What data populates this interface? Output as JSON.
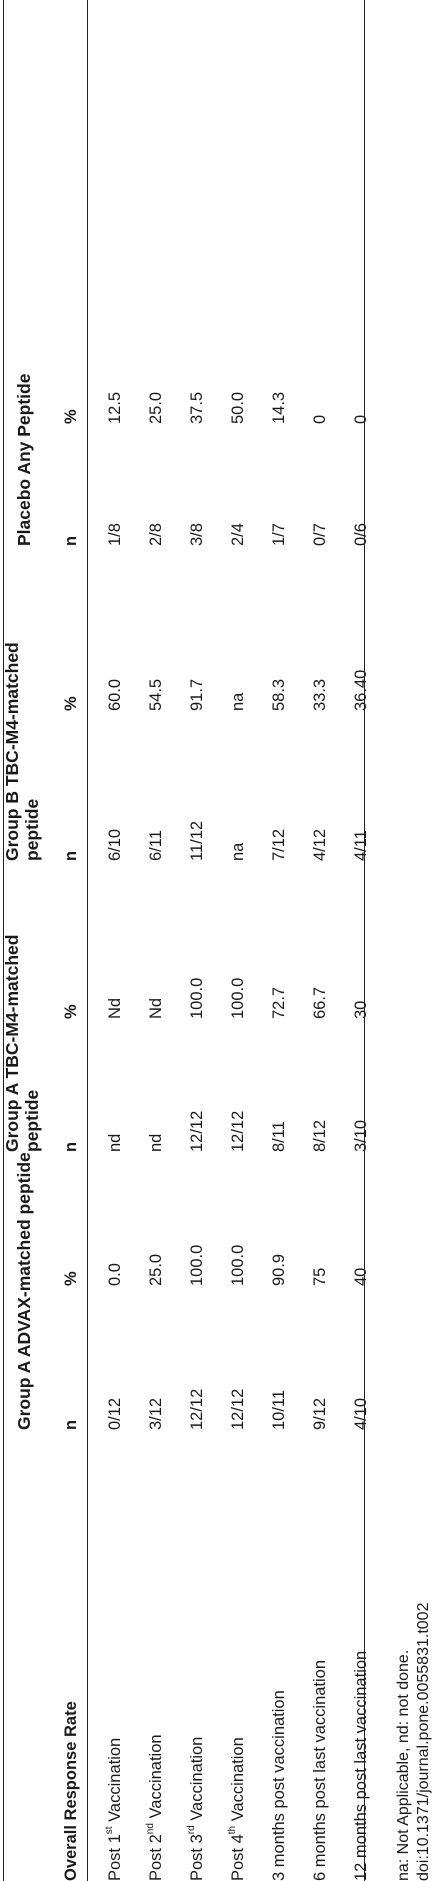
{
  "table": {
    "groups": [
      {
        "label": "Group A ADVAX-matched peptide"
      },
      {
        "label": "Group A TBC-M4-matched",
        "label2": "peptide"
      },
      {
        "label": "Group B TBC-M4-matched",
        "label2": "peptide"
      },
      {
        "label": "Placebo Any Peptide"
      }
    ],
    "subheaders": {
      "n": "n",
      "pct": "%"
    },
    "row_header": "Overall Response Rate",
    "rows": [
      {
        "pre": "Post 1",
        "sup": "st",
        "post": " Vaccination",
        "cells": [
          "0/12",
          "0.0",
          "nd",
          "Nd",
          "6/10",
          "60.0",
          "1/8",
          "12.5"
        ]
      },
      {
        "pre": "Post 2",
        "sup": "nd",
        "post": " Vaccination",
        "cells": [
          "3/12",
          "25.0",
          "nd",
          "Nd",
          "6/11",
          "54.5",
          "2/8",
          "25.0"
        ]
      },
      {
        "pre": "Post 3",
        "sup": "rd",
        "post": " Vaccination",
        "cells": [
          "12/12",
          "100.0",
          "12/12",
          "100.0",
          "11/12",
          "91.7",
          "3/8",
          "37.5"
        ]
      },
      {
        "pre": "Post 4",
        "sup": "th",
        "post": " Vaccination",
        "cells": [
          "12/12",
          "100.0",
          "12/12",
          "100.0",
          "na",
          "na",
          "2/4",
          "50.0"
        ]
      },
      {
        "pre": "3 months post vaccination",
        "sup": "",
        "post": "",
        "cells": [
          "10/11",
          "90.9",
          "8/11",
          "72.7",
          "7/12",
          "58.3",
          "1/7",
          "14.3"
        ]
      },
      {
        "pre": "6 months post last vaccination",
        "sup": "",
        "post": "",
        "cells": [
          "9/12",
          "75",
          "8/12",
          "66.7",
          "4/12",
          "33.3",
          "0/7",
          "0"
        ]
      },
      {
        "pre": "12 months post last vaccination",
        "sup": "",
        "post": "",
        "cells": [
          "4/10",
          "40",
          "3/10",
          "30",
          "4/11",
          "36.40",
          "0/6",
          "0"
        ]
      }
    ]
  },
  "footnote": "na: Not Applicable, nd: not done.",
  "doi": "doi:10.1371/journal.pone.0055831.t002"
}
